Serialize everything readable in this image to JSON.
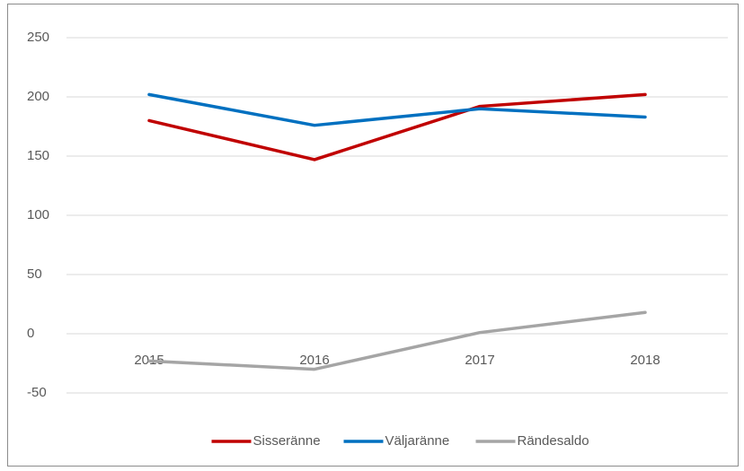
{
  "chart_data": {
    "type": "line",
    "categories": [
      "2015",
      "2016",
      "2017",
      "2018"
    ],
    "series": [
      {
        "name": "Sisseränne",
        "color": "#c00000",
        "values": [
          180,
          147,
          192,
          202
        ]
      },
      {
        "name": "Väljaränne",
        "color": "#0070c0",
        "values": [
          202,
          176,
          190,
          183
        ]
      },
      {
        "name": "Rändesaldo",
        "color": "#a5a5a5",
        "values": [
          -23,
          -30,
          1,
          18
        ]
      }
    ],
    "ylim": [
      -50,
      250
    ],
    "yticks": [
      -50,
      0,
      50,
      100,
      150,
      200,
      250
    ],
    "grid": true,
    "legend": "bottom"
  }
}
